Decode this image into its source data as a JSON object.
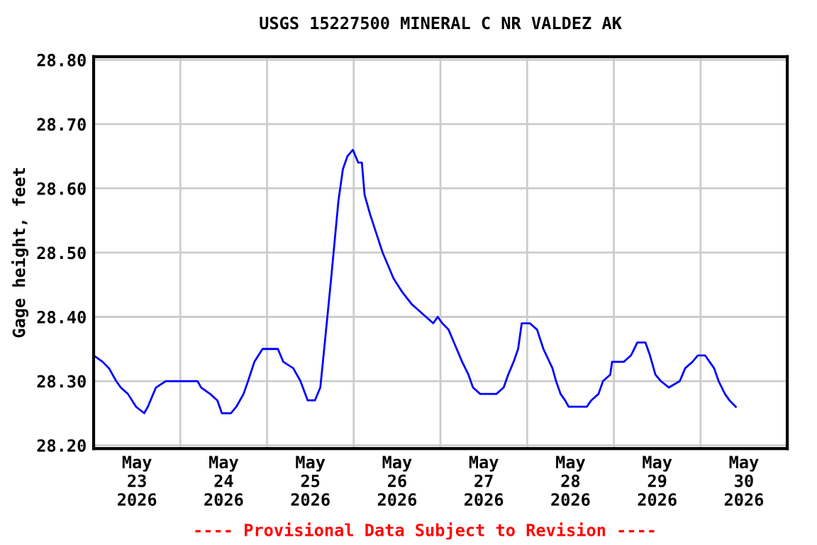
{
  "chart_data": {
    "type": "line",
    "title": "USGS 15227500 MINERAL C NR VALDEZ AK",
    "ylabel": "Gage height, feet",
    "annotations": [
      "---- Provisional Data Subject to Revision ----"
    ],
    "x": [
      "2026-05-23T00:00",
      "2026-05-23T02:30",
      "2026-05-23T04:15",
      "2026-05-23T06:15",
      "2026-05-23T07:30",
      "2026-05-23T09:30",
      "2026-05-23T11:45",
      "2026-05-23T14:00",
      "2026-05-23T15:00",
      "2026-05-23T16:30",
      "2026-05-23T17:15",
      "2026-05-23T20:00",
      "2026-05-23T23:15",
      "2026-05-24T04:45",
      "2026-05-24T05:45",
      "2026-05-24T08:15",
      "2026-05-24T10:15",
      "2026-05-24T11:30",
      "2026-05-24T14:00",
      "2026-05-24T15:30",
      "2026-05-24T17:30",
      "2026-05-24T18:45",
      "2026-05-24T20:30",
      "2026-05-24T22:45",
      "2026-05-25T03:00",
      "2026-05-25T04:30",
      "2026-05-25T07:15",
      "2026-05-25T09:15",
      "2026-05-25T11:15",
      "2026-05-25T13:15",
      "2026-05-25T14:45",
      "2026-05-25T16:00",
      "2026-05-25T17:45",
      "2026-05-25T18:45",
      "2026-05-25T19:45",
      "2026-05-25T21:00",
      "2026-05-25T22:15",
      "2026-05-25T23:45",
      "2026-05-26T01:15",
      "2026-05-26T02:15",
      "2026-05-26T03:00",
      "2026-05-26T04:30",
      "2026-05-26T06:15",
      "2026-05-26T08:00",
      "2026-05-26T09:30",
      "2026-05-26T11:00",
      "2026-05-26T13:15",
      "2026-05-26T16:00",
      "2026-05-26T18:00",
      "2026-05-26T22:00",
      "2026-05-26T23:15",
      "2026-05-27T00:30",
      "2026-05-27T02:15",
      "2026-05-27T03:45",
      "2026-05-27T06:00",
      "2026-05-27T07:45",
      "2026-05-27T09:00",
      "2026-05-27T11:00",
      "2026-05-27T14:15",
      "2026-05-27T15:30",
      "2026-05-27T17:30",
      "2026-05-27T18:45",
      "2026-05-27T20:15",
      "2026-05-27T21:30",
      "2026-05-27T22:30",
      "2026-05-28T00:45",
      "2026-05-28T02:45",
      "2026-05-28T04:30",
      "2026-05-28T07:00",
      "2026-05-28T08:00",
      "2026-05-28T09:15",
      "2026-05-28T10:30",
      "2026-05-28T11:30",
      "2026-05-28T16:30",
      "2026-05-28T17:45",
      "2026-05-28T19:45",
      "2026-05-28T21:00",
      "2026-05-28T23:00",
      "2026-05-28T23:30",
      "2026-05-29T02:45",
      "2026-05-29T04:45",
      "2026-05-29T06:30",
      "2026-05-29T08:45",
      "2026-05-29T10:00",
      "2026-05-29T11:30",
      "2026-05-29T13:00",
      "2026-05-29T15:15",
      "2026-05-29T18:15",
      "2026-05-29T19:45",
      "2026-05-29T21:45",
      "2026-05-29T23:15",
      "2026-05-30T01:15",
      "2026-05-30T02:30",
      "2026-05-30T03:45",
      "2026-05-30T05:00",
      "2026-05-30T06:45",
      "2026-05-30T08:00",
      "2026-05-30T09:45"
    ],
    "series": [
      {
        "color": "#0000ff",
        "values": [
          28.34,
          28.33,
          28.32,
          28.3,
          28.29,
          28.28,
          28.26,
          28.25,
          28.26,
          28.28,
          28.29,
          28.3,
          28.3,
          28.3,
          28.29,
          28.28,
          28.27,
          28.25,
          28.25,
          28.26,
          28.28,
          28.3,
          28.33,
          28.35,
          28.35,
          28.33,
          28.32,
          28.3,
          28.27,
          28.27,
          28.29,
          28.36,
          28.46,
          28.52,
          28.58,
          28.63,
          28.65,
          28.66,
          28.64,
          28.64,
          28.59,
          28.56,
          28.53,
          28.5,
          28.48,
          28.46,
          28.44,
          28.42,
          28.41,
          28.39,
          28.4,
          28.39,
          28.38,
          28.36,
          28.33,
          28.31,
          28.29,
          28.28,
          28.28,
          28.28,
          28.29,
          28.31,
          28.33,
          28.35,
          28.39,
          28.39,
          28.38,
          28.35,
          28.32,
          28.3,
          28.28,
          28.27,
          28.26,
          28.26,
          28.27,
          28.28,
          28.3,
          28.31,
          28.33,
          28.33,
          28.34,
          28.36,
          28.36,
          28.34,
          28.31,
          28.3,
          28.29,
          28.3,
          28.32,
          28.33,
          28.34,
          28.34,
          28.33,
          28.32,
          28.3,
          28.28,
          28.27,
          28.26
        ]
      }
    ],
    "xlim": [
      "2026-05-23T00:00",
      "2026-05-31T00:00"
    ],
    "xticks": [
      {
        "value": "2026-05-24T00:00",
        "label": null
      },
      {
        "value": "2026-05-25T00:00",
        "label": null
      },
      {
        "value": "2026-05-26T00:00",
        "label": null
      },
      {
        "value": "2026-05-27T00:00",
        "label": null
      },
      {
        "value": "2026-05-28T00:00",
        "label": null
      },
      {
        "value": "2026-05-29T00:00",
        "label": null
      },
      {
        "value": "2026-05-30T00:00",
        "label": null
      },
      {
        "value": "2026-05-23T12:00",
        "label": "May\n23\n2026"
      },
      {
        "value": "2026-05-24T12:00",
        "label": "May\n24\n2026"
      },
      {
        "value": "2026-05-25T12:00",
        "label": "May\n25\n2026"
      },
      {
        "value": "2026-05-26T12:00",
        "label": "May\n26\n2026"
      },
      {
        "value": "2026-05-27T12:00",
        "label": "May\n27\n2026"
      },
      {
        "value": "2026-05-28T12:00",
        "label": "May\n28\n2026"
      },
      {
        "value": "2026-05-29T12:00",
        "label": "May\n29\n2026"
      },
      {
        "value": "2026-05-30T12:00",
        "label": "May\n30\n2026"
      }
    ],
    "ylim": [
      28.195,
      28.805
    ],
    "yticks": [
      {
        "value": 28.2,
        "label": "28.20"
      },
      {
        "value": 28.3,
        "label": "28.30"
      },
      {
        "value": 28.4,
        "label": "28.40"
      },
      {
        "value": 28.5,
        "label": "28.50"
      },
      {
        "value": 28.6,
        "label": "28.60"
      },
      {
        "value": 28.7,
        "label": "28.70"
      },
      {
        "value": 28.8,
        "label": "28.80"
      }
    ],
    "grid": true,
    "legend": false
  }
}
